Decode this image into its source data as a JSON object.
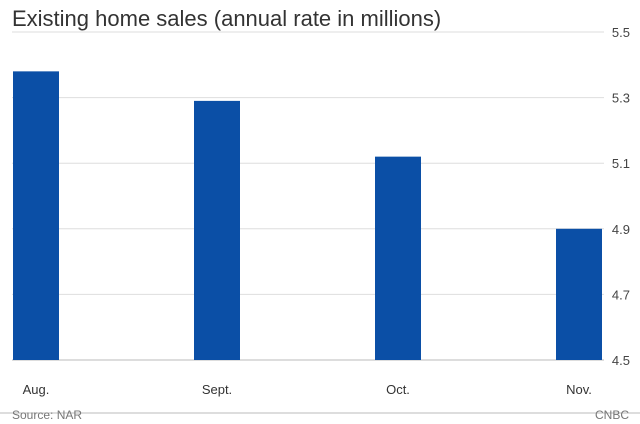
{
  "chart_data": {
    "type": "bar",
    "title": "Existing home sales (annual rate in millions)",
    "categories": [
      "Aug.",
      "Sept.",
      "Oct.",
      "Nov."
    ],
    "values": [
      5.38,
      5.29,
      5.12,
      4.9
    ],
    "ylim": [
      4.5,
      5.5
    ],
    "yticks": [
      "5.5",
      "5.3",
      "5.1",
      "4.9",
      "4.7",
      "4.5"
    ],
    "y_axis_side": "right",
    "grid": true,
    "bar_color": "#0b4fa6"
  },
  "footer": {
    "source": "Source: NAR",
    "credit": "CNBC"
  }
}
